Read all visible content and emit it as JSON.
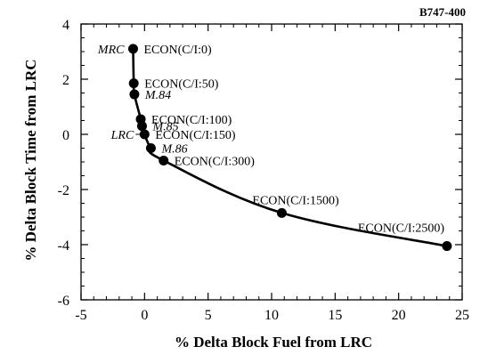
{
  "chart_data": {
    "type": "line",
    "corner_label": "B747-400",
    "xlabel": "% Delta Block Fuel from LRC",
    "ylabel": "% Delta Block Time from LRC",
    "xlim": [
      -5,
      25
    ],
    "ylim": [
      -6,
      4
    ],
    "xticks": [
      -5,
      0,
      5,
      10,
      15,
      20,
      25
    ],
    "yticks": [
      -6,
      -4,
      -2,
      0,
      2,
      4
    ],
    "minor_x_step": 1,
    "minor_y_step": 0.5,
    "grid": false,
    "series": [
      {
        "x": [
          -0.9,
          -0.85,
          -0.8,
          -0.3,
          -0.2,
          0.0,
          0.5,
          1.5,
          10.8,
          23.8
        ],
        "y": [
          3.1,
          1.85,
          1.45,
          0.55,
          0.3,
          0.0,
          -0.5,
          -0.95,
          -2.85,
          -4.05
        ]
      }
    ],
    "points": [
      {
        "x": -0.9,
        "y": 3.1
      },
      {
        "x": -0.85,
        "y": 1.85
      },
      {
        "x": -0.8,
        "y": 1.45
      },
      {
        "x": -0.3,
        "y": 0.55
      },
      {
        "x": -0.2,
        "y": 0.3
      },
      {
        "x": 0.0,
        "y": 0.0
      },
      {
        "x": 0.5,
        "y": -0.5
      },
      {
        "x": 1.5,
        "y": -0.95
      },
      {
        "x": 10.8,
        "y": -2.85
      },
      {
        "x": 23.8,
        "y": -4.05
      }
    ],
    "annotations": [
      {
        "text": "MRC",
        "x": -0.9,
        "y": 3.1,
        "italic": true,
        "side": "left"
      },
      {
        "text": "ECON(C/I:0)",
        "x": -0.9,
        "y": 3.1,
        "italic": false,
        "side": "right"
      },
      {
        "text": "ECON(C/I:50)",
        "x": -0.85,
        "y": 1.85,
        "italic": false,
        "side": "right"
      },
      {
        "text": "M.84",
        "x": -0.8,
        "y": 1.45,
        "italic": true,
        "side": "right"
      },
      {
        "text": "ECON(C/I:100)",
        "x": -0.3,
        "y": 0.55,
        "italic": false,
        "side": "right"
      },
      {
        "text": "M.85",
        "x": -0.2,
        "y": 0.3,
        "italic": true,
        "side": "right"
      },
      {
        "text": "LRC",
        "x": 0.0,
        "y": 0.0,
        "italic": true,
        "side": "left"
      },
      {
        "text": "ECON(C/I:150)",
        "x": 0.0,
        "y": 0.0,
        "italic": false,
        "side": "right"
      },
      {
        "text": "M.86",
        "x": 0.5,
        "y": -0.5,
        "italic": true,
        "side": "right"
      },
      {
        "text": "ECON(C/I:300)",
        "x": 1.5,
        "y": -0.95,
        "italic": false,
        "side": "right"
      },
      {
        "text": "ECON(C/I:1500)",
        "x": 10.8,
        "y": -2.85,
        "italic": false,
        "side": "above"
      },
      {
        "text": "ECON(C/I:2500)",
        "x": 23.8,
        "y": -4.05,
        "italic": false,
        "side": "above-left"
      }
    ]
  }
}
